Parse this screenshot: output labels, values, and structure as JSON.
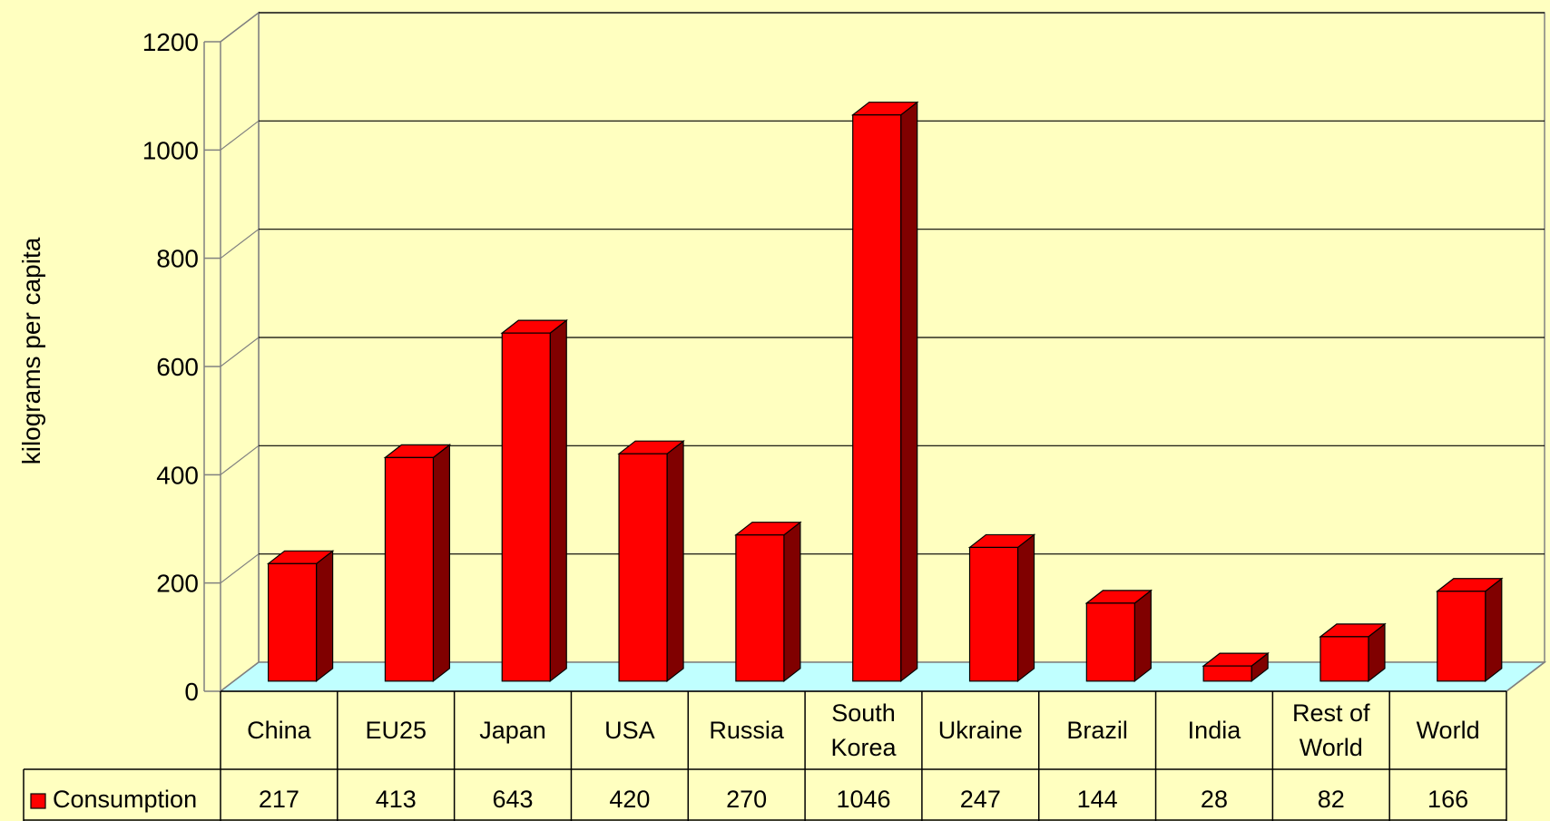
{
  "chart_data": {
    "type": "bar",
    "ylabel": "kilograms per capita",
    "ylim": [
      0,
      1200
    ],
    "yticks": [
      0,
      200,
      400,
      600,
      800,
      1000,
      1200
    ],
    "grid": true,
    "categories": [
      "China",
      "EU25",
      "Japan",
      "USA",
      "Russia",
      "South Korea",
      "Ukraine",
      "Brazil",
      "India",
      "Rest of World",
      "World"
    ],
    "category_lines": [
      [
        "China"
      ],
      [
        "EU25"
      ],
      [
        "Japan"
      ],
      [
        "USA"
      ],
      [
        "Russia"
      ],
      [
        "South",
        "Korea"
      ],
      [
        "Ukraine"
      ],
      [
        "Brazil"
      ],
      [
        "India"
      ],
      [
        "Rest of",
        "World"
      ],
      [
        "World"
      ]
    ],
    "series": [
      {
        "name": "Consumption",
        "values": [
          217,
          413,
          643,
          420,
          270,
          1046,
          247,
          144,
          28,
          82,
          166
        ],
        "color": "#FF0000",
        "side_color": "#800000"
      }
    ],
    "data_table": true,
    "floor_color": "#C0FFFF",
    "background_color": "#FFFFC0"
  }
}
